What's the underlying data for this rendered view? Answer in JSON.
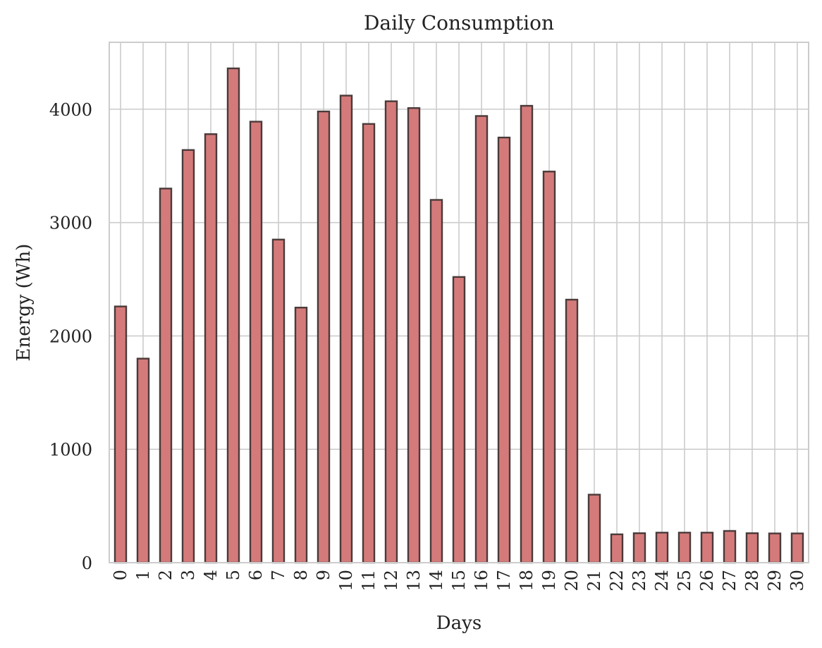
{
  "chart_data": {
    "type": "bar",
    "title": "Daily Consumption",
    "xlabel": "Days",
    "ylabel": "Energy (Wh)",
    "categories": [
      "0",
      "1",
      "2",
      "3",
      "4",
      "5",
      "6",
      "7",
      "8",
      "9",
      "10",
      "11",
      "12",
      "13",
      "14",
      "15",
      "16",
      "17",
      "18",
      "19",
      "20",
      "21",
      "22",
      "23",
      "24",
      "25",
      "26",
      "27",
      "28",
      "29",
      "30"
    ],
    "values": [
      2260,
      1800,
      3300,
      3640,
      3780,
      4360,
      3890,
      2850,
      2250,
      3980,
      4120,
      3870,
      4070,
      4010,
      3200,
      2520,
      3940,
      3750,
      4030,
      3450,
      2320,
      600,
      250,
      260,
      265,
      265,
      265,
      280,
      260,
      258,
      258
    ],
    "yticks": [
      0,
      1000,
      2000,
      3000,
      4000
    ],
    "ylim": [
      0,
      4590
    ],
    "grid": true,
    "legend": "none",
    "colors": {
      "bar_fill": "#d57a7a",
      "bar_edge": "#4a3a3a",
      "grid": "#cccccc",
      "frame": "#cccccc"
    }
  }
}
